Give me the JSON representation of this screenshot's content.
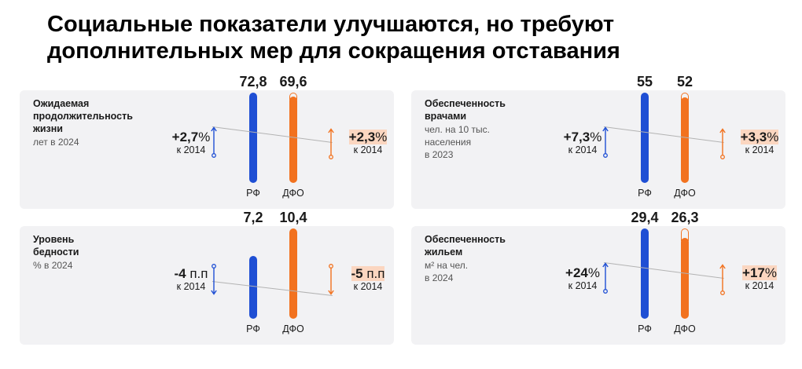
{
  "title_lines": [
    "Социальные показатели улучшаются, но требуют",
    "дополнительных мер для сокращения отставания"
  ],
  "colors": {
    "rf": "#1f4fd4",
    "dfo": "#f2721f",
    "card_bg": "#f2f2f4"
  },
  "chart_data": [
    {
      "type": "bar",
      "name_lines": [
        "Ожидаемая",
        "продолжительность",
        "жизни"
      ],
      "sub_lines": [
        "лет в 2024"
      ],
      "categories": [
        "РФ",
        "ДФО"
      ],
      "values": [
        72.8,
        69.6
      ],
      "value_labels": [
        "72,8",
        "69,6"
      ],
      "changes": [
        {
          "value": "+2,7",
          "unit": "%",
          "base": "к 2014",
          "direction": "up"
        },
        {
          "value": "+2,3",
          "unit": "%",
          "base": "к 2014",
          "direction": "up"
        }
      ]
    },
    {
      "type": "bar",
      "name_lines": [
        "Обеспеченность",
        "врачами"
      ],
      "sub_lines": [
        "чел. на 10 тыс.",
        "населения",
        "в 2023"
      ],
      "categories": [
        "РФ",
        "ДФО"
      ],
      "values": [
        55,
        52
      ],
      "value_labels": [
        "55",
        "52"
      ],
      "changes": [
        {
          "value": "+7,3",
          "unit": "%",
          "base": "к 2014",
          "direction": "up"
        },
        {
          "value": "+3,3",
          "unit": "%",
          "base": "к 2014",
          "direction": "up"
        }
      ]
    },
    {
      "type": "bar",
      "name_lines": [
        "Уровень",
        "бедности"
      ],
      "sub_lines": [
        "% в 2024"
      ],
      "categories": [
        "РФ",
        "ДФО"
      ],
      "values": [
        7.2,
        10.4
      ],
      "value_labels": [
        "7,2",
        "10,4"
      ],
      "changes": [
        {
          "value": "-4",
          "unit": " п.п",
          "base": "к 2014",
          "direction": "down"
        },
        {
          "value": "-5",
          "unit": " п.п",
          "base": "к 2014",
          "direction": "down"
        }
      ]
    },
    {
      "type": "bar",
      "name_lines": [
        "Обеспеченность",
        "жильем"
      ],
      "sub_lines": [
        "м² на чел.",
        "в 2024"
      ],
      "categories": [
        "РФ",
        "ДФО"
      ],
      "values": [
        29.4,
        26.3
      ],
      "value_labels": [
        "29,4",
        "26,3"
      ],
      "changes": [
        {
          "value": "+24",
          "unit": "%",
          "base": "к 2014",
          "direction": "up"
        },
        {
          "value": "+17",
          "unit": "%",
          "base": "к 2014",
          "direction": "up"
        }
      ]
    }
  ]
}
